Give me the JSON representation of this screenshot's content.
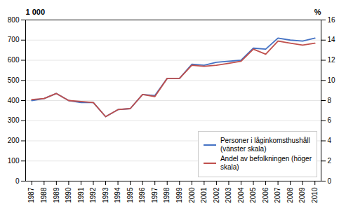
{
  "chart_data": {
    "type": "line",
    "x": [
      1987,
      1988,
      1989,
      1990,
      1991,
      1992,
      1993,
      1994,
      1995,
      1996,
      1997,
      1998,
      1999,
      2000,
      2001,
      2002,
      2003,
      2004,
      2005,
      2006,
      2007,
      2008,
      2009,
      2010
    ],
    "xlim": [
      1986.5,
      2010.5
    ],
    "xticks": [
      1987,
      1988,
      1989,
      1990,
      1991,
      1992,
      1993,
      1994,
      1995,
      1996,
      1997,
      1998,
      1999,
      2000,
      2001,
      2002,
      2003,
      2004,
      2005,
      2006,
      2007,
      2008,
      2009,
      2010
    ],
    "ylim": [
      0,
      800
    ],
    "yticks": [
      0,
      100,
      200,
      300,
      400,
      500,
      600,
      700,
      800
    ],
    "y2lim": [
      0,
      16
    ],
    "y2ticks": [
      0,
      2,
      4,
      6,
      8,
      10,
      12,
      14,
      16
    ],
    "ylabel": "1 000",
    "y2label": "%",
    "grid": true,
    "legend": "lower right",
    "series": [
      {
        "name": "Personer i låginkomsthushåll\n(vänster skala)",
        "color": "#4472C4",
        "values": [
          400,
          410,
          435,
          400,
          390,
          390,
          320,
          355,
          360,
          430,
          425,
          510,
          510,
          580,
          575,
          590,
          595,
          600,
          660,
          655,
          710,
          700,
          695,
          710
        ]
      },
      {
        "name": "Andel av befolkningen (höger\nskala)",
        "color": "#C0504D",
        "axis": "y2",
        "values": [
          8.1,
          8.2,
          8.7,
          8.0,
          7.9,
          7.8,
          6.4,
          7.1,
          7.2,
          8.6,
          8.4,
          10.2,
          10.2,
          11.5,
          11.4,
          11.5,
          11.7,
          11.9,
          13.1,
          12.6,
          13.9,
          13.7,
          13.5,
          13.7
        ]
      }
    ]
  }
}
